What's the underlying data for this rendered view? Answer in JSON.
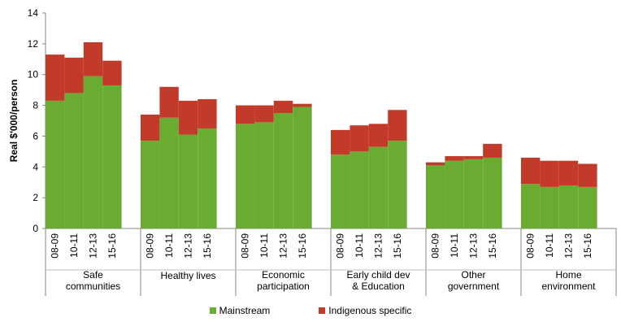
{
  "chart_data": {
    "type": "bar",
    "stacked": true,
    "ylabel": "Real $'000/person",
    "ylim": [
      0,
      14
    ],
    "yticks": [
      0,
      2,
      4,
      6,
      8,
      10,
      12,
      14
    ],
    "grid": false,
    "legend_position": "bottom",
    "groups": [
      {
        "label": "Safe communities",
        "label_lines": [
          "Safe",
          "communities"
        ]
      },
      {
        "label": "Healthy lives",
        "label_lines": [
          "Healthy lives"
        ]
      },
      {
        "label": "Economic participation",
        "label_lines": [
          "Economic",
          "participation"
        ]
      },
      {
        "label": "Early child dev & Education",
        "label_lines": [
          "Early child dev",
          "& Education"
        ]
      },
      {
        "label": "Other government",
        "label_lines": [
          "Other",
          "government"
        ]
      },
      {
        "label": "Home environment",
        "label_lines": [
          "Home",
          "environment"
        ]
      }
    ],
    "periods": [
      "08-09",
      "10-11",
      "12-13",
      "15-16"
    ],
    "series": [
      {
        "name": "Mainstream",
        "color": "#6aab32",
        "values": [
          [
            8.3,
            8.8,
            9.9,
            9.3
          ],
          [
            5.7,
            7.2,
            6.1,
            6.5
          ],
          [
            6.8,
            6.9,
            7.5,
            7.9
          ],
          [
            4.8,
            5.0,
            5.3,
            5.7
          ],
          [
            4.1,
            4.4,
            4.5,
            4.6
          ],
          [
            2.9,
            2.7,
            2.8,
            2.7
          ]
        ]
      },
      {
        "name": "Indigenous specific",
        "color": "#c23b2a",
        "values": [
          [
            3.0,
            2.3,
            2.2,
            1.6
          ],
          [
            1.7,
            2.0,
            2.2,
            1.9
          ],
          [
            1.2,
            1.1,
            0.8,
            0.2
          ],
          [
            1.6,
            1.7,
            1.5,
            2.0
          ],
          [
            0.2,
            0.3,
            0.2,
            0.9
          ],
          [
            1.7,
            1.7,
            1.6,
            1.5
          ]
        ]
      }
    ]
  }
}
